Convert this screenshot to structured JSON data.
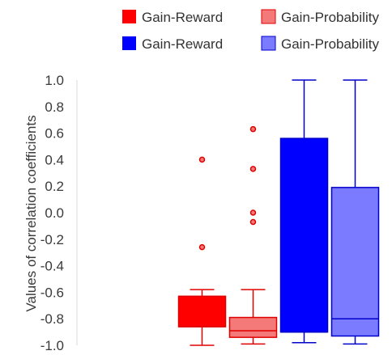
{
  "chart_data": {
    "type": "box",
    "ylabel": "Values of correlation coefficients",
    "ylim": [
      -1.0,
      1.0
    ],
    "yticks": [
      "1.0",
      "0.8",
      "0.6",
      "0.4",
      "0.2",
      "0.0",
      "-0.2",
      "-0.4",
      "-0.6",
      "-0.8",
      "-1.0"
    ],
    "legend_position": "top",
    "series": [
      {
        "name": "Gain-Reward",
        "fill": "#ff0000",
        "stroke": "#e00000",
        "whisker_low": -1.0,
        "q1": -0.86,
        "median": -0.86,
        "q3": -0.63,
        "whisker_high": -0.58,
        "outliers": [
          0.4,
          -0.26
        ]
      },
      {
        "name": "Gain-Probability",
        "fill": "#f47a7a",
        "stroke": "#e00000",
        "whisker_low": -0.99,
        "q1": -0.94,
        "median": -0.89,
        "q3": -0.79,
        "whisker_high": -0.58,
        "outliers": [
          0.63,
          0.33,
          0.0,
          -0.07
        ]
      },
      {
        "name": "Gain-Reward",
        "fill": "#0000ff",
        "stroke": "#0000cc",
        "whisker_low": -0.98,
        "q1": -0.9,
        "median": -0.9,
        "q3": 0.56,
        "whisker_high": 1.0,
        "outliers": []
      },
      {
        "name": "Gain-Probability",
        "fill": "#7b7bff",
        "stroke": "#0000cc",
        "whisker_low": -0.99,
        "q1": -0.93,
        "median": -0.8,
        "q3": 0.19,
        "whisker_high": 1.0,
        "outliers": []
      }
    ]
  }
}
